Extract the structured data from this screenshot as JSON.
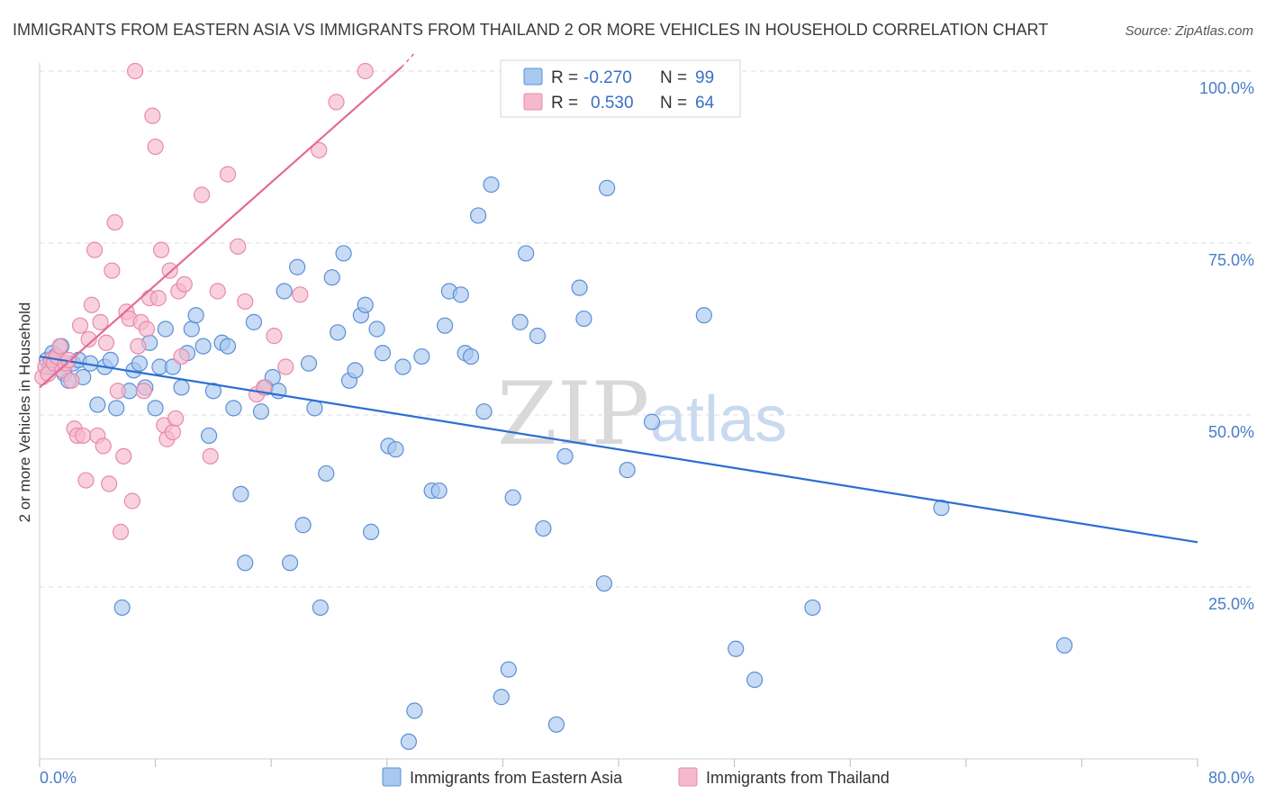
{
  "title": "IMMIGRANTS FROM EASTERN ASIA VS IMMIGRANTS FROM THAILAND 2 OR MORE VEHICLES IN HOUSEHOLD CORRELATION CHART",
  "source": "Source: ZipAtlas.com",
  "watermark": {
    "zip": "ZIP",
    "atlas": "atlas"
  },
  "legend": {
    "rows": [
      {
        "r_label": "R =",
        "r_value": "-0.270",
        "n_label": "N =",
        "n_value": "99"
      },
      {
        "r_label": "R =",
        "r_value": "0.530",
        "n_label": "N =",
        "n_value": "64"
      }
    ]
  },
  "colors": {
    "blue_fill": "#a9c8f0",
    "blue_stroke": "#5b8fd6",
    "blue_line": "#2b6fd1",
    "pink_fill": "#f6b9cc",
    "pink_stroke": "#e88aa8",
    "pink_line": "#e56a93",
    "grid": "#dcdcdc",
    "tick_text": "#4a7cc9"
  },
  "chart_data": {
    "type": "scatter",
    "title": "IMMIGRANTS FROM EASTERN ASIA VS IMMIGRANTS FROM THAILAND 2 OR MORE VEHICLES IN HOUSEHOLD CORRELATION CHART",
    "xlabel": "",
    "ylabel": "2 or more Vehicles in Household",
    "xlim": [
      0,
      80
    ],
    "ylim": [
      0,
      100
    ],
    "x_tick_labels": [
      "0.0%",
      "80.0%"
    ],
    "y_ticks": [
      25,
      50,
      75,
      100
    ],
    "y_tick_labels": [
      "25.0%",
      "50.0%",
      "75.0%",
      "100.0%"
    ],
    "grid": true,
    "legend_position": "top-center",
    "series": [
      {
        "name": "Immigrants from Eastern Asia",
        "color": "#a9c8f0",
        "trend": {
          "x": [
            0,
            80
          ],
          "y": [
            58.5,
            31.5
          ]
        },
        "points": [
          [
            0.5,
            58
          ],
          [
            0.7,
            57
          ],
          [
            0.9,
            59
          ],
          [
            1.1,
            58.5
          ],
          [
            1.3,
            57.5
          ],
          [
            1.5,
            60
          ],
          [
            1.7,
            56
          ],
          [
            2.0,
            55
          ],
          [
            2.3,
            57.5
          ],
          [
            2.7,
            58
          ],
          [
            3.0,
            55.5
          ],
          [
            3.5,
            57.5
          ],
          [
            4.0,
            51.5
          ],
          [
            4.5,
            57
          ],
          [
            4.9,
            58
          ],
          [
            5.3,
            51
          ],
          [
            5.7,
            22
          ],
          [
            6.2,
            53.5
          ],
          [
            6.5,
            56.5
          ],
          [
            6.9,
            57.5
          ],
          [
            7.3,
            54
          ],
          [
            7.6,
            60.5
          ],
          [
            8.0,
            51
          ],
          [
            8.3,
            57
          ],
          [
            8.7,
            62.5
          ],
          [
            9.2,
            57
          ],
          [
            9.8,
            54
          ],
          [
            10.2,
            59
          ],
          [
            10.5,
            62.5
          ],
          [
            10.8,
            64.5
          ],
          [
            11.3,
            60
          ],
          [
            11.7,
            47
          ],
          [
            12.0,
            53.5
          ],
          [
            12.6,
            60.5
          ],
          [
            13.0,
            60
          ],
          [
            13.4,
            51
          ],
          [
            13.9,
            38.5
          ],
          [
            14.2,
            28.5
          ],
          [
            14.8,
            63.5
          ],
          [
            15.3,
            50.5
          ],
          [
            15.6,
            54
          ],
          [
            16.1,
            55.5
          ],
          [
            16.5,
            53.5
          ],
          [
            16.9,
            68
          ],
          [
            17.3,
            28.5
          ],
          [
            17.8,
            71.5
          ],
          [
            18.2,
            34
          ],
          [
            18.6,
            57.5
          ],
          [
            19.0,
            51
          ],
          [
            19.4,
            22
          ],
          [
            19.8,
            41.5
          ],
          [
            20.2,
            70
          ],
          [
            20.6,
            62
          ],
          [
            21.0,
            73.5
          ],
          [
            21.4,
            55
          ],
          [
            21.8,
            56.5
          ],
          [
            22.2,
            64.5
          ],
          [
            22.5,
            66
          ],
          [
            22.9,
            33
          ],
          [
            23.3,
            62.5
          ],
          [
            23.7,
            59
          ],
          [
            24.1,
            45.5
          ],
          [
            24.6,
            45
          ],
          [
            25.1,
            57
          ],
          [
            25.5,
            2.5
          ],
          [
            25.9,
            7
          ],
          [
            26.4,
            58.5
          ],
          [
            27.1,
            39
          ],
          [
            27.6,
            39
          ],
          [
            28.0,
            63
          ],
          [
            28.3,
            68
          ],
          [
            29.1,
            67.5
          ],
          [
            29.4,
            59
          ],
          [
            29.8,
            58.5
          ],
          [
            30.3,
            79
          ],
          [
            30.7,
            50.5
          ],
          [
            31.2,
            83.5
          ],
          [
            31.9,
            9
          ],
          [
            32.4,
            13
          ],
          [
            32.7,
            38
          ],
          [
            33.2,
            63.5
          ],
          [
            33.6,
            73.5
          ],
          [
            34.4,
            61.5
          ],
          [
            34.8,
            33.5
          ],
          [
            35.7,
            5
          ],
          [
            36.3,
            44
          ],
          [
            37.3,
            68.5
          ],
          [
            37.6,
            64
          ],
          [
            39.0,
            25.5
          ],
          [
            39.2,
            83
          ],
          [
            40.6,
            42
          ],
          [
            42.3,
            49
          ],
          [
            45.9,
            64.5
          ],
          [
            48.1,
            16
          ],
          [
            49.4,
            11.5
          ],
          [
            53.4,
            22
          ],
          [
            62.3,
            36.5
          ],
          [
            70.8,
            16.5
          ],
          [
            43.0,
            100
          ]
        ]
      },
      {
        "name": "Immigrants from Thailand",
        "color": "#f6b9cc",
        "trend": {
          "x": [
            0,
            25.5
          ],
          "y": [
            54,
            101.5
          ]
        },
        "points": [
          [
            0.2,
            55.5
          ],
          [
            0.4,
            57
          ],
          [
            0.6,
            56
          ],
          [
            0.8,
            58
          ],
          [
            1.0,
            57.5
          ],
          [
            1.2,
            58.5
          ],
          [
            1.4,
            60
          ],
          [
            1.6,
            56.5
          ],
          [
            1.8,
            57.5
          ],
          [
            2.0,
            58
          ],
          [
            2.2,
            55
          ],
          [
            2.4,
            48
          ],
          [
            2.6,
            47
          ],
          [
            2.8,
            63
          ],
          [
            3.0,
            47
          ],
          [
            3.2,
            40.5
          ],
          [
            3.4,
            61
          ],
          [
            3.6,
            66
          ],
          [
            3.8,
            74
          ],
          [
            4.0,
            47
          ],
          [
            4.2,
            63.5
          ],
          [
            4.4,
            45.5
          ],
          [
            4.6,
            60.5
          ],
          [
            4.8,
            40
          ],
          [
            5.0,
            71
          ],
          [
            5.2,
            78
          ],
          [
            5.4,
            53.5
          ],
          [
            5.6,
            33
          ],
          [
            5.8,
            44
          ],
          [
            6.0,
            65
          ],
          [
            6.2,
            64
          ],
          [
            6.4,
            37.5
          ],
          [
            6.6,
            100
          ],
          [
            6.8,
            60
          ],
          [
            7.0,
            63.5
          ],
          [
            7.2,
            53.5
          ],
          [
            7.4,
            62.5
          ],
          [
            7.6,
            67
          ],
          [
            7.8,
            93.5
          ],
          [
            8.0,
            89
          ],
          [
            8.2,
            67
          ],
          [
            8.4,
            74
          ],
          [
            8.6,
            48.5
          ],
          [
            8.8,
            46.5
          ],
          [
            9.0,
            71
          ],
          [
            9.2,
            47.5
          ],
          [
            9.4,
            49.5
          ],
          [
            9.6,
            68
          ],
          [
            9.8,
            58.5
          ],
          [
            10.0,
            69
          ],
          [
            11.2,
            82
          ],
          [
            11.8,
            44
          ],
          [
            12.3,
            68
          ],
          [
            13.0,
            85
          ],
          [
            13.7,
            74.5
          ],
          [
            14.2,
            66.5
          ],
          [
            15.0,
            53
          ],
          [
            15.5,
            54
          ],
          [
            16.2,
            61.5
          ],
          [
            17.0,
            57
          ],
          [
            18.0,
            67.5
          ],
          [
            19.3,
            88.5
          ],
          [
            20.5,
            95.5
          ],
          [
            22.5,
            100
          ]
        ]
      }
    ]
  },
  "bottom_legend": [
    {
      "label": "Immigrants from Eastern Asia"
    },
    {
      "label": "Immigrants from Thailand"
    }
  ]
}
